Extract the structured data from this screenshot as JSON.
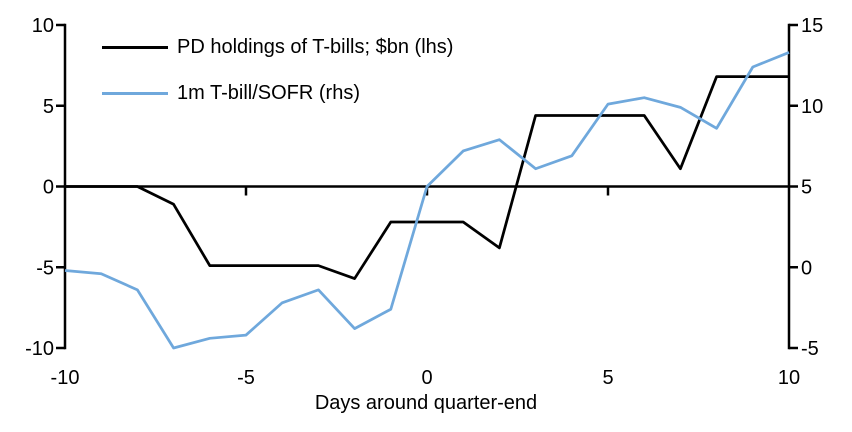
{
  "chart_data": {
    "type": "line",
    "title": "",
    "xlabel": "Days around quarter-end",
    "grid": false,
    "legend_position": "top-left-inside",
    "x": [
      -10,
      -9,
      -8,
      -7,
      -6,
      -5,
      -4,
      -3,
      -2,
      -1,
      0,
      1,
      2,
      3,
      4,
      5,
      6,
      7,
      8,
      9,
      10
    ],
    "x_ticks": [
      -10,
      -5,
      0,
      5,
      10
    ],
    "left_axis": {
      "range": [
        -10,
        10
      ],
      "ticks": [
        10,
        5,
        0,
        -5,
        -10
      ]
    },
    "right_axis": {
      "range": [
        -5,
        15
      ],
      "ticks": [
        15,
        10,
        5,
        0,
        -5
      ]
    },
    "axis_color": "#000000",
    "series": [
      {
        "name": "PD holdings of T-bills; $bn (lhs)",
        "axis": "left",
        "color": "#000000",
        "values": [
          0,
          0,
          0,
          -1.1,
          -4.9,
          -4.9,
          -4.9,
          -4.9,
          -5.7,
          -2.2,
          -2.2,
          -2.2,
          -3.8,
          4.4,
          4.4,
          4.4,
          4.4,
          1.1,
          6.8,
          6.8,
          6.8
        ]
      },
      {
        "name": "1m T-bill/SOFR (rhs)",
        "axis": "right",
        "color": "#6FA8DC",
        "values": [
          -0.2,
          -0.4,
          -1.4,
          -5.0,
          -4.4,
          -4.2,
          -2.2,
          -1.4,
          -3.8,
          -2.6,
          5.0,
          7.2,
          7.9,
          6.1,
          6.9,
          10.1,
          10.5,
          9.9,
          8.6,
          12.4,
          13.3
        ]
      }
    ]
  }
}
